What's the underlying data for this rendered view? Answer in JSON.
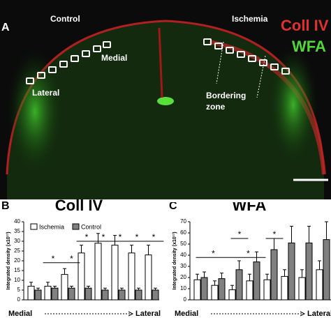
{
  "panel_a": {
    "label": "A",
    "control": "Control",
    "ischemia": "Ischemia",
    "stain_red": "Coll IV",
    "stain_green": "WFA",
    "medial": "Medial",
    "lateral": "Lateral",
    "bordering": "Bordering",
    "zone": "zone"
  },
  "chart_data": [
    {
      "type": "bar",
      "panel": "B",
      "title": "Coll IV",
      "ylabel": "Integrated density (x10¹¹)",
      "x_start": "Medial",
      "x_end": "Lateral",
      "ylim": [
        0,
        40
      ],
      "yticks": [
        0,
        5,
        10,
        15,
        20,
        25,
        30,
        35,
        40
      ],
      "series": [
        {
          "name": "Ischemia",
          "color": "#ffffff",
          "values": [
            7,
            7,
            13,
            24,
            29,
            28,
            24,
            23
          ],
          "errors": [
            2,
            2,
            3,
            4,
            5,
            5,
            4,
            5
          ]
        },
        {
          "name": "Control",
          "color": "#808080",
          "values": [
            5,
            6,
            6,
            6,
            5,
            5,
            5,
            5
          ],
          "errors": [
            1,
            1,
            1,
            1,
            1,
            1,
            1,
            1
          ]
        }
      ],
      "significance": [
        "*",
        "*",
        "*",
        "*",
        "*",
        "*",
        "*"
      ]
    },
    {
      "type": "bar",
      "panel": "C",
      "title": "WFA",
      "ylabel": "Integrated density (x10¹¹)",
      "x_start": "Medial",
      "x_end": "Lateral",
      "ylim": [
        0,
        70
      ],
      "yticks": [
        0,
        10,
        20,
        30,
        40,
        50,
        60,
        70
      ],
      "series": [
        {
          "name": "Ischemia",
          "color": "#ffffff",
          "values": [
            18,
            13,
            9,
            17,
            18,
            21,
            20,
            27
          ],
          "errors": [
            5,
            4,
            4,
            6,
            5,
            6,
            7,
            8
          ]
        },
        {
          "name": "Control",
          "color": "#808080",
          "values": [
            20,
            19,
            27,
            34,
            45,
            51,
            51,
            54
          ],
          "errors": [
            5,
            5,
            8,
            9,
            10,
            15,
            15,
            16
          ]
        }
      ],
      "significance": [
        "*",
        "*",
        "*",
        "*"
      ]
    }
  ]
}
